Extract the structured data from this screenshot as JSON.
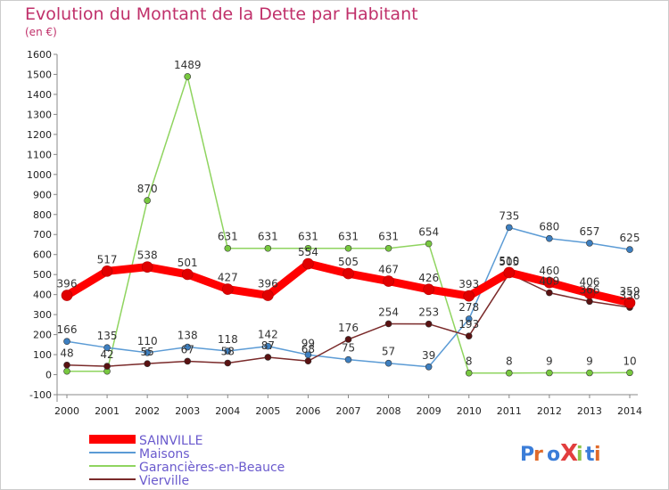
{
  "chart_data": {
    "type": "line",
    "title": "Evolution du Montant de la Dette par Habitant",
    "subtitle": "(en €)",
    "x": [
      "2000",
      "2001",
      "2002",
      "2003",
      "2004",
      "2005",
      "2006",
      "2007",
      "2008",
      "2009",
      "2010",
      "2011",
      "2012",
      "2013",
      "2014"
    ],
    "y_ticks": [
      -100,
      0,
      100,
      200,
      300,
      400,
      500,
      600,
      700,
      800,
      900,
      1000,
      1100,
      1200,
      1300,
      1400,
      1500,
      1600
    ],
    "ylim": [
      -100,
      1600
    ],
    "grid": false,
    "legend_position": "bottom-left",
    "series": [
      {
        "name": "SAINVILLE",
        "color": "#ff0000",
        "marker": "#e00000",
        "values": [
          396,
          517,
          538,
          501,
          427,
          396,
          554,
          505,
          467,
          426,
          393,
          510,
          460,
          406,
          359
        ]
      },
      {
        "name": "Maisons",
        "color": "#5b9bd5",
        "marker": "#3d7fc0",
        "values": [
          166,
          135,
          110,
          138,
          118,
          142,
          99,
          75,
          57,
          39,
          278,
          735,
          680,
          657,
          625
        ]
      },
      {
        "name": "Garancières-en-Beauce",
        "color": "#8fd45f",
        "marker": "#78c840",
        "values": [
          17,
          17,
          870,
          1489,
          631,
          631,
          631,
          631,
          631,
          654,
          8,
          8,
          9,
          9,
          10
        ]
      },
      {
        "name": "Vierville",
        "color": "#7a2a2a",
        "marker": "#5a1212",
        "values": [
          48,
          42,
          55,
          67,
          58,
          87,
          68,
          176,
          254,
          253,
          193,
          505,
          409,
          366,
          336
        ]
      }
    ],
    "data_labels": [
      [
        396,
        517,
        538,
        501,
        427,
        396,
        554,
        505,
        467,
        426,
        393,
        510,
        460,
        406,
        359
      ],
      [
        166,
        135,
        110,
        138,
        118,
        142,
        99,
        75,
        57,
        39,
        278,
        735,
        680,
        657,
        625
      ],
      [
        "",
        "",
        870,
        1489,
        631,
        631,
        631,
        631,
        631,
        654,
        8,
        8,
        9,
        9,
        10
      ],
      [
        48,
        42,
        55,
        67,
        58,
        87,
        68,
        176,
        254,
        253,
        193,
        505,
        409,
        366,
        336
      ]
    ]
  },
  "logo": {
    "text": "ProXiti"
  }
}
